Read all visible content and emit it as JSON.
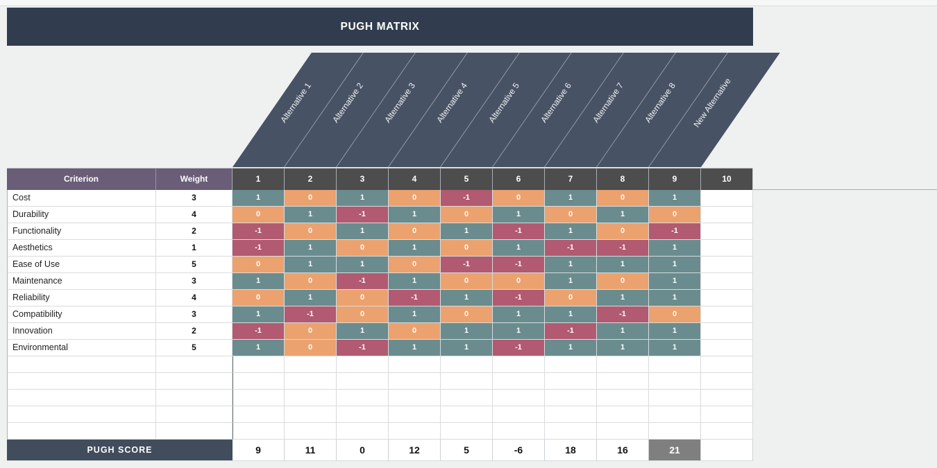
{
  "title": "PUGH MATRIX",
  "header": {
    "criterion": "Criterion",
    "weight": "Weight",
    "column_numbers": [
      "1",
      "2",
      "3",
      "4",
      "5",
      "6",
      "7",
      "8",
      "9",
      "10"
    ]
  },
  "alternatives": [
    "Alternative 1",
    "Alternative 2",
    "Alternative 3",
    "Alternative 4",
    "Alternative 5",
    "Alternative 6",
    "Alternative 7",
    "Alternative 8",
    "New Alternative"
  ],
  "rows": [
    {
      "criterion": "Cost",
      "weight": "3",
      "values": [
        1,
        0,
        1,
        0,
        -1,
        0,
        1,
        0,
        1
      ]
    },
    {
      "criterion": "Durability",
      "weight": "4",
      "values": [
        0,
        1,
        -1,
        1,
        0,
        1,
        0,
        1,
        0
      ]
    },
    {
      "criterion": "Functionality",
      "weight": "2",
      "values": [
        -1,
        0,
        1,
        0,
        1,
        -1,
        1,
        0,
        -1
      ]
    },
    {
      "criterion": "Aesthetics",
      "weight": "1",
      "values": [
        -1,
        1,
        0,
        1,
        0,
        1,
        -1,
        -1,
        1
      ]
    },
    {
      "criterion": "Ease of Use",
      "weight": "5",
      "values": [
        0,
        1,
        1,
        0,
        -1,
        -1,
        1,
        1,
        1
      ]
    },
    {
      "criterion": "Maintenance",
      "weight": "3",
      "values": [
        1,
        0,
        -1,
        1,
        0,
        0,
        1,
        0,
        1
      ]
    },
    {
      "criterion": "Reliability",
      "weight": "4",
      "values": [
        0,
        1,
        0,
        -1,
        1,
        -1,
        0,
        1,
        1
      ]
    },
    {
      "criterion": "Compatibility",
      "weight": "3",
      "values": [
        1,
        -1,
        0,
        1,
        0,
        1,
        1,
        -1,
        0
      ]
    },
    {
      "criterion": "Innovation",
      "weight": "2",
      "values": [
        -1,
        0,
        1,
        0,
        1,
        1,
        -1,
        1,
        1
      ]
    },
    {
      "criterion": "Environmental",
      "weight": "5",
      "values": [
        1,
        0,
        -1,
        1,
        1,
        -1,
        1,
        1,
        1
      ]
    }
  ],
  "empty_row_count": 5,
  "score": {
    "label": "PUGH SCORE",
    "values": [
      "9",
      "11",
      "0",
      "12",
      "5",
      "-6",
      "18",
      "16",
      "21"
    ],
    "highlight_index": 8
  },
  "colors": {
    "positive": "#6A8C8E",
    "neutral": "#ECA26E",
    "negative": "#B15A72",
    "title_bg": "#313D4E",
    "slant_bg": "#475265",
    "purple_header": "#695D78",
    "number_header_bg": "#4D4D4D",
    "score_label_bg": "#414D5C",
    "score_highlight": "#7F7F7F"
  }
}
